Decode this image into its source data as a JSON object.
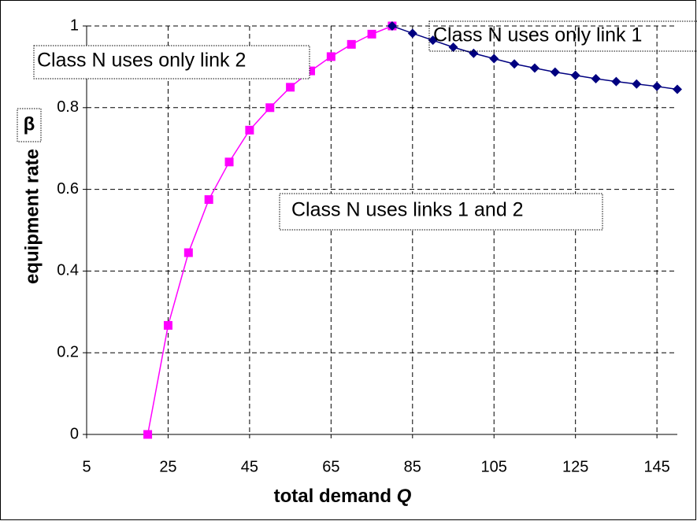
{
  "chart_data": {
    "type": "line",
    "x_label": "total demand",
    "x_label_var": "Q",
    "y_label": "equipment  rate",
    "y_label_symbol": "β",
    "annotations": [
      "Class N uses only link 2",
      "Class N uses only link 1",
      "Class N uses links 1 and 2"
    ],
    "xlim": [
      5,
      150
    ],
    "xticks": [
      5,
      25,
      45,
      65,
      85,
      105,
      125,
      145
    ],
    "ylim": [
      0,
      1
    ],
    "yticks": [
      0,
      0.2,
      0.4,
      0.6,
      0.8,
      1
    ],
    "grid": true,
    "series": [
      {
        "color": "#ff00ff",
        "marker": "square",
        "x": [
          20,
          25,
          30,
          35,
          40,
          45,
          50,
          55,
          60,
          65,
          70,
          75,
          80
        ],
        "values": [
          0,
          0.267,
          0.445,
          0.575,
          0.667,
          0.745,
          0.8,
          0.85,
          0.89,
          0.925,
          0.955,
          0.98,
          1.0
        ]
      },
      {
        "color": "#000080",
        "marker": "diamond",
        "x": [
          80,
          85,
          90,
          95,
          100,
          105,
          110,
          115,
          120,
          125,
          130,
          135,
          140,
          145,
          150
        ],
        "values": [
          1.0,
          0.982,
          0.965,
          0.948,
          0.933,
          0.92,
          0.907,
          0.897,
          0.887,
          0.879,
          0.871,
          0.864,
          0.858,
          0.852,
          0.845
        ]
      }
    ]
  }
}
